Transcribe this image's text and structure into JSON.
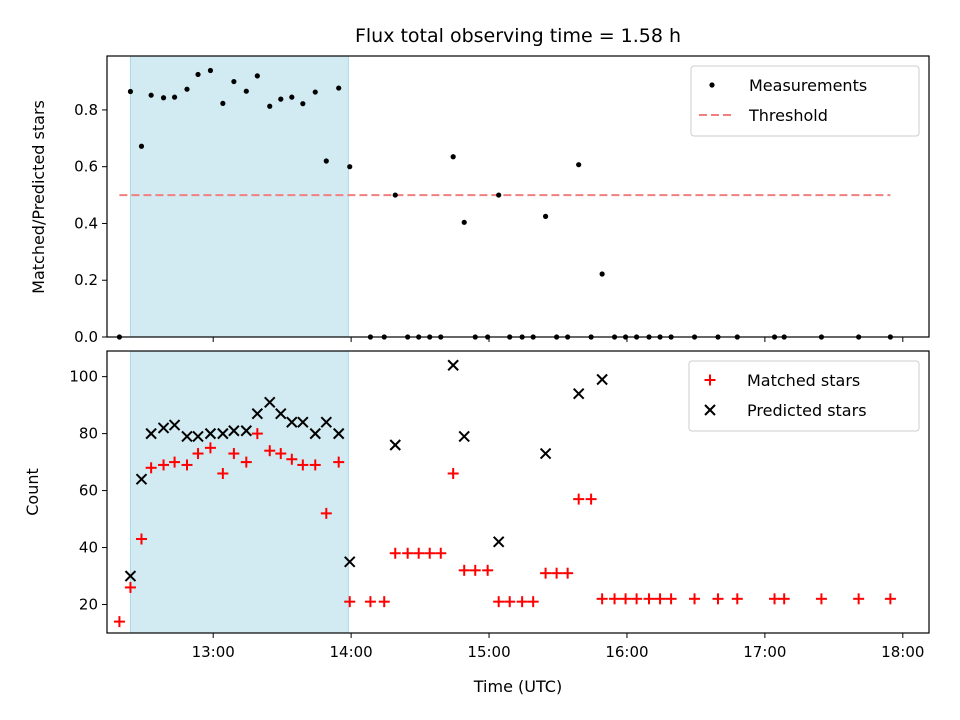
{
  "chart_data": {
    "title": "Flux total observing time = 1.58 h",
    "xlabel": "Time (UTC)",
    "x_tick_labels": [
      "13:00",
      "14:00",
      "15:00",
      "16:00",
      "17:00",
      "18:00"
    ],
    "x_ticks_hours": [
      13,
      14,
      15,
      16,
      17,
      18
    ],
    "xlim_hours": [
      12.23,
      18.19
    ],
    "shaded_interval_hours": [
      12.4,
      13.98
    ],
    "colors": {
      "shade": "#add8e6",
      "measurement": "#000000",
      "threshold": "#f08080",
      "matched": "#ff0000",
      "predicted": "#000000"
    },
    "panels": [
      {
        "type": "scatter",
        "ylabel": "Matched/Predicted stars",
        "ylim": [
          0,
          0.99
        ],
        "y_ticks": [
          0.0,
          0.2,
          0.4,
          0.6,
          0.8
        ],
        "y_tick_labels": [
          "0.0",
          "0.2",
          "0.4",
          "0.6",
          "0.8"
        ],
        "legend": {
          "position": "upper right",
          "entries": [
            "Measurements",
            "Threshold"
          ]
        },
        "threshold": {
          "name": "Threshold",
          "y": 0.5,
          "x_range_hours": [
            12.32,
            17.91
          ]
        },
        "series": [
          {
            "name": "Measurements",
            "marker": "dot",
            "x_hours": [
              12.32,
              12.4,
              12.48,
              12.55,
              12.64,
              12.72,
              12.81,
              12.89,
              12.98,
              13.07,
              13.15,
              13.24,
              13.32,
              13.41,
              13.49,
              13.57,
              13.65,
              13.74,
              13.82,
              13.91,
              13.99,
              14.14,
              14.24,
              14.32,
              14.41,
              14.49,
              14.57,
              14.65,
              14.74,
              14.82,
              14.9,
              14.99,
              15.07,
              15.15,
              15.24,
              15.32,
              15.41,
              15.49,
              15.57,
              15.65,
              15.74,
              15.82,
              15.91,
              15.99,
              16.07,
              16.16,
              16.24,
              16.32,
              16.49,
              16.66,
              16.8,
              17.07,
              17.14,
              17.41,
              17.68,
              17.91
            ],
            "y_values": [
              0.0,
              0.865,
              0.672,
              0.852,
              0.843,
              0.845,
              0.873,
              0.925,
              0.939,
              0.823,
              0.9,
              0.866,
              0.92,
              0.813,
              0.838,
              0.845,
              0.822,
              0.863,
              0.62,
              0.877,
              0.6,
              0.0,
              0.0,
              0.5,
              0.0,
              0.0,
              0.0,
              0.0,
              0.635,
              0.404,
              0.0,
              0.0,
              0.5,
              0.0,
              0.0,
              0.0,
              0.425,
              0.0,
              0.0,
              0.607,
              0.0,
              0.222,
              0.0,
              0.0,
              0.0,
              0.0,
              0.0,
              0.0,
              0.0,
              0.0,
              0.0,
              0.0,
              0.0,
              0.0,
              0.0,
              0.0
            ]
          }
        ]
      },
      {
        "type": "scatter",
        "ylabel": "Count",
        "ylim": [
          10,
          109
        ],
        "y_ticks": [
          20,
          40,
          60,
          80,
          100
        ],
        "y_tick_labels": [
          "20",
          "40",
          "60",
          "80",
          "100"
        ],
        "legend": {
          "position": "upper right",
          "entries": [
            "Matched stars",
            "Predicted stars"
          ]
        },
        "series": [
          {
            "name": "Matched stars",
            "marker": "plus",
            "x_hours": [
              12.32,
              12.4,
              12.48,
              12.55,
              12.64,
              12.72,
              12.81,
              12.89,
              12.98,
              13.07,
              13.15,
              13.24,
              13.32,
              13.41,
              13.49,
              13.57,
              13.65,
              13.74,
              13.82,
              13.91,
              13.99,
              14.14,
              14.24,
              14.32,
              14.41,
              14.49,
              14.57,
              14.65,
              14.74,
              14.82,
              14.9,
              14.99,
              15.07,
              15.15,
              15.24,
              15.32,
              15.41,
              15.49,
              15.57,
              15.65,
              15.74,
              15.82,
              15.91,
              15.99,
              16.07,
              16.16,
              16.24,
              16.32,
              16.49,
              16.66,
              16.8,
              17.07,
              17.14,
              17.41,
              17.68,
              17.91
            ],
            "y_values": [
              14,
              26,
              43,
              68,
              69,
              70,
              69,
              73,
              75,
              66,
              73,
              70,
              80,
              74,
              73,
              71,
              69,
              69,
              52,
              70,
              21,
              21,
              21,
              38,
              38,
              38,
              38,
              38,
              66,
              32,
              32,
              32,
              21,
              21,
              21,
              21,
              31,
              31,
              31,
              57,
              57,
              22,
              22,
              22,
              22,
              22,
              22,
              22,
              22,
              22,
              22,
              22,
              22,
              22,
              22,
              22
            ]
          },
          {
            "name": "Predicted stars",
            "marker": "x",
            "x_hours": [
              12.4,
              12.48,
              12.55,
              12.64,
              12.72,
              12.81,
              12.89,
              12.98,
              13.07,
              13.15,
              13.24,
              13.32,
              13.41,
              13.49,
              13.57,
              13.65,
              13.74,
              13.82,
              13.91,
              13.99,
              14.32,
              14.74,
              14.82,
              15.07,
              15.41,
              15.65,
              15.82
            ],
            "y_values": [
              30,
              64,
              80,
              82,
              83,
              79,
              79,
              80,
              80,
              81,
              81,
              87,
              91,
              87,
              84,
              84,
              80,
              84,
              80,
              35,
              76,
              104,
              79,
              42,
              73,
              94,
              99
            ]
          }
        ]
      }
    ]
  }
}
